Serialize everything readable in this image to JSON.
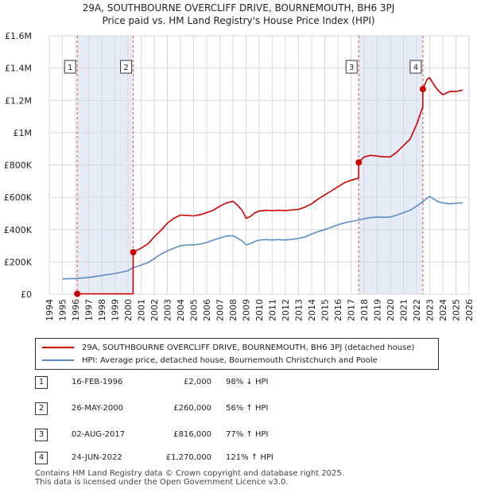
{
  "chart_data": {
    "type": "line",
    "title": "29A, SOUTHBOURNE OVERCLIFF DRIVE, BOURNEMOUTH, BH6 3PJ",
    "subtitle": "Price paid vs. HM Land Registry's House Price Index (HPI)",
    "xlim": [
      1994,
      2026
    ],
    "ylim": [
      0,
      1600000
    ],
    "y_ticks": [
      {
        "value": 0,
        "label": "£0"
      },
      {
        "value": 200000,
        "label": "£200K"
      },
      {
        "value": 400000,
        "label": "£400K"
      },
      {
        "value": 600000,
        "label": "£600K"
      },
      {
        "value": 800000,
        "label": "£800K"
      },
      {
        "value": 1000000,
        "label": "£1M"
      },
      {
        "value": 1200000,
        "label": "£1.2M"
      },
      {
        "value": 1400000,
        "label": "£1.4M"
      },
      {
        "value": 1600000,
        "label": "£1.6M"
      }
    ],
    "x_ticks": [
      "1994",
      "1995",
      "1996",
      "1997",
      "1998",
      "1999",
      "2000",
      "2001",
      "2002",
      "2003",
      "2004",
      "2005",
      "2006",
      "2007",
      "2008",
      "2009",
      "2010",
      "2011",
      "2012",
      "2013",
      "2014",
      "2015",
      "2016",
      "2017",
      "2018",
      "2019",
      "2020",
      "2021",
      "2022",
      "2023",
      "2024",
      "2025",
      "2026"
    ],
    "shaded_ranges": [
      [
        1996.13,
        2000.4
      ],
      [
        2017.59,
        2022.48
      ]
    ],
    "series": [
      {
        "name": "29A, SOUTHBOURNE OVERCLIFF DRIVE, BOURNEMOUTH, BH6 3PJ (detached house)",
        "color": "#cc0000",
        "x": [
          1996.13,
          1996.13,
          1997,
          1998,
          1999,
          2000.39,
          2000.4,
          2001,
          2001.5,
          2002,
          2002.5,
          2003,
          2003.5,
          2004,
          2004.5,
          2005,
          2005.5,
          2006,
          2006.5,
          2007,
          2007.5,
          2008,
          2008.3,
          2008.7,
          2009,
          2009.3,
          2009.7,
          2010,
          2010.5,
          2011,
          2011.5,
          2012,
          2012.5,
          2013,
          2013.5,
          2014,
          2014.5,
          2015,
          2015.5,
          2016,
          2016.5,
          2017,
          2017.58,
          2017.59,
          2018,
          2018.5,
          2019,
          2019.5,
          2020,
          2020.5,
          2021,
          2021.5,
          2022,
          2022.47,
          2022.48,
          2022.8,
          2023,
          2023.3,
          2023.6,
          2024,
          2024.5,
          2025,
          2025.3,
          2025.5
        ],
        "values": [
          2000,
          2000,
          2000,
          2000,
          2000,
          2000,
          260000,
          285000,
          310000,
          355000,
          395000,
          440000,
          470000,
          490000,
          488000,
          485000,
          492000,
          505000,
          520000,
          545000,
          565000,
          575000,
          555000,
          520000,
          470000,
          480000,
          505000,
          515000,
          520000,
          518000,
          520000,
          518000,
          522000,
          525000,
          540000,
          560000,
          590000,
          615000,
          640000,
          665000,
          690000,
          705000,
          720000,
          816000,
          850000,
          860000,
          855000,
          850000,
          850000,
          880000,
          920000,
          960000,
          1050000,
          1160000,
          1270000,
          1330000,
          1340000,
          1300000,
          1265000,
          1235000,
          1255000,
          1255000,
          1260000,
          1265000
        ]
      },
      {
        "name": "HPI: Average price, detached house, Bournemouth Christchurch and Poole",
        "color": "#5b8ec6",
        "x": [
          1995,
          1996,
          1997,
          1998,
          1999,
          2000,
          2000.4,
          2001,
          2001.5,
          2002,
          2002.5,
          2003,
          2003.5,
          2004,
          2004.5,
          2005,
          2005.5,
          2006,
          2006.5,
          2007,
          2007.5,
          2008,
          2008.3,
          2008.7,
          2009,
          2009.3,
          2009.7,
          2010,
          2010.5,
          2011,
          2011.5,
          2012,
          2012.5,
          2013,
          2013.5,
          2014,
          2014.5,
          2015,
          2015.5,
          2016,
          2016.5,
          2017,
          2017.5,
          2018,
          2018.5,
          2019,
          2019.5,
          2020,
          2020.5,
          2021,
          2021.5,
          2022,
          2022.5,
          2022.8,
          2023,
          2023.3,
          2023.6,
          2024,
          2024.5,
          2025,
          2025.5
        ],
        "values": [
          95000,
          97000,
          104000,
          116000,
          128000,
          145000,
          165000,
          180000,
          195000,
          220000,
          248000,
          268000,
          285000,
          300000,
          305000,
          305000,
          310000,
          320000,
          335000,
          348000,
          360000,
          362000,
          350000,
          330000,
          305000,
          312000,
          328000,
          335000,
          338000,
          336000,
          338000,
          336000,
          340000,
          345000,
          355000,
          372000,
          388000,
          400000,
          415000,
          430000,
          442000,
          450000,
          458000,
          467000,
          474000,
          478000,
          476000,
          478000,
          490000,
          505000,
          520000,
          545000,
          575000,
          595000,
          605000,
          590000,
          575000,
          565000,
          560000,
          563000,
          565000
        ]
      }
    ],
    "sales": [
      {
        "label": "1",
        "x": 1996.13,
        "value": 2000
      },
      {
        "label": "2",
        "x": 2000.4,
        "value": 260000
      },
      {
        "label": "3",
        "x": 2017.59,
        "value": 816000
      },
      {
        "label": "4",
        "x": 2022.48,
        "value": 1270000
      }
    ]
  },
  "legend": {
    "property_label": "29A, SOUTHBOURNE OVERCLIFF DRIVE, BOURNEMOUTH, BH6 3PJ (detached house)",
    "hpi_label": "HPI: Average price, detached house, Bournemouth Christchurch and Poole"
  },
  "transactions": [
    {
      "num": "1",
      "date": "16-FEB-1996",
      "price": "£2,000",
      "hpi": "98% ↓ HPI"
    },
    {
      "num": "2",
      "date": "26-MAY-2000",
      "price": "£260,000",
      "hpi": "56% ↑ HPI"
    },
    {
      "num": "3",
      "date": "02-AUG-2017",
      "price": "£816,000",
      "hpi": "77% ↑ HPI"
    },
    {
      "num": "4",
      "date": "24-JUN-2022",
      "price": "£1,270,000",
      "hpi": "121% ↑ HPI"
    }
  ],
  "footer": {
    "line1": "Contains HM Land Registry data © Crown copyright and database right 2025.",
    "line2": "This data is licensed under the Open Government Licence v3.0."
  }
}
